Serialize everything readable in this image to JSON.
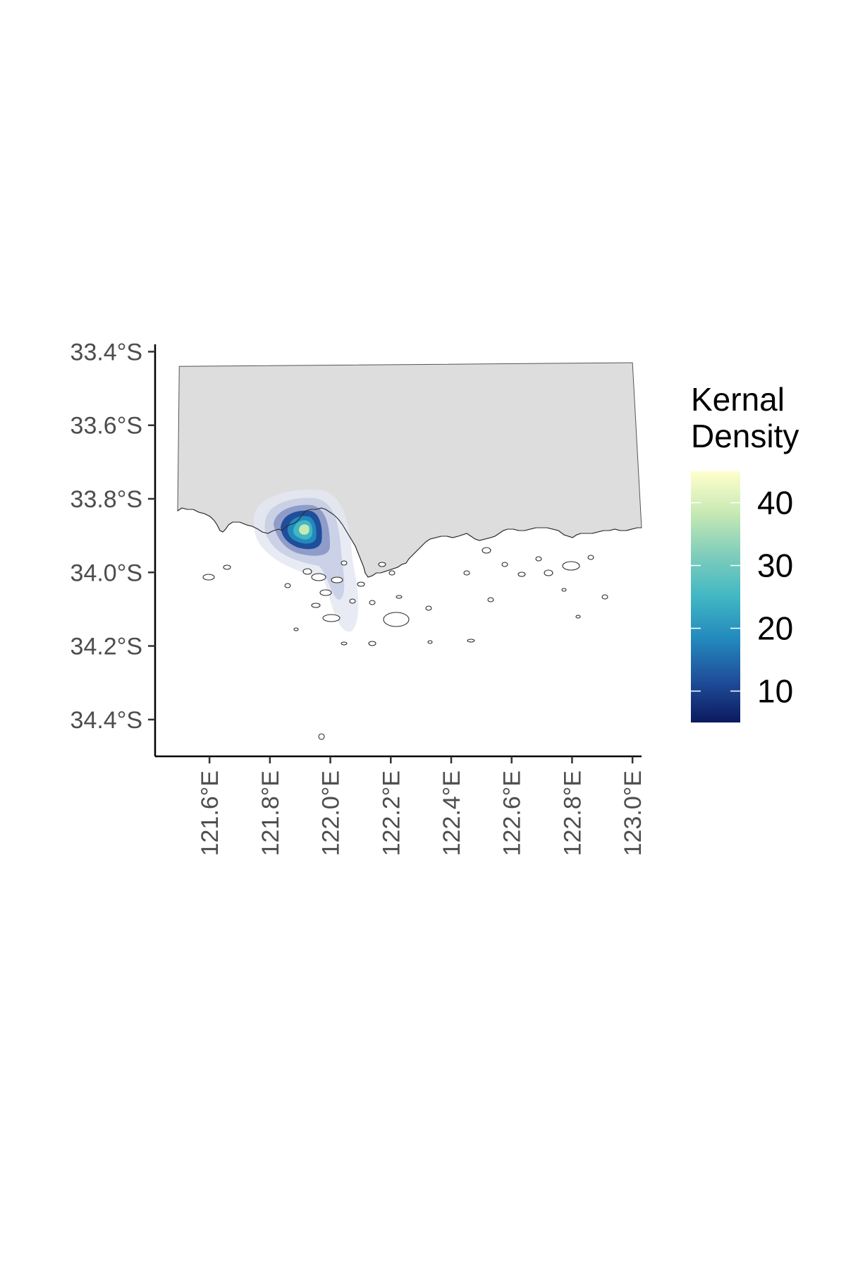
{
  "chart_data": {
    "type": "heatmap",
    "title": "",
    "xlabel": "",
    "ylabel": "",
    "xlim": [
      121.42,
      123.03
    ],
    "ylim": [
      -34.5,
      -33.38
    ],
    "x_ticks": [
      121.6,
      121.8,
      122.0,
      122.2,
      122.4,
      122.6,
      122.8,
      123.0
    ],
    "x_tick_labels": [
      "121.6°E",
      "121.8°E",
      "122.0°E",
      "122.2°E",
      "122.4°E",
      "122.6°E",
      "122.8°E",
      "123.0°E"
    ],
    "y_ticks": [
      -33.4,
      -33.6,
      -33.8,
      -34.0,
      -34.2,
      -34.4
    ],
    "y_tick_labels": [
      "33.4°S",
      "33.6°S",
      "33.8°S",
      "34.0°S",
      "34.2°S",
      "34.4°S"
    ],
    "grid": false,
    "legend": {
      "title": [
        "Kernal",
        "Density"
      ],
      "min": 5,
      "max": 45,
      "ticks": [
        10,
        20,
        30,
        40
      ],
      "tick_labels": [
        "10",
        "20",
        "30",
        "40"
      ],
      "placement": "right",
      "colors": [
        "#0c1a5f",
        "#1f4e9a",
        "#2389bd",
        "#41b7c4",
        "#7fcdbb",
        "#c7e9b4",
        "#ffffcc"
      ]
    },
    "land_color": "#dddddd",
    "density_hotspot": {
      "center_lon": 121.91,
      "center_lat": -33.89,
      "peak_value": 45,
      "levels": [
        5,
        10,
        20,
        30,
        40,
        45
      ]
    }
  }
}
